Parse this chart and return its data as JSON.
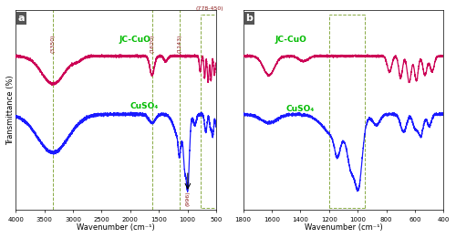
{
  "panel_a": {
    "xmin": 500,
    "xmax": 4000,
    "xlabel": "Wavenumber (cm⁻¹)",
    "ylabel": "Transmittance (%)",
    "label": "a",
    "xticks": [
      4000,
      3500,
      3000,
      2500,
      2000,
      1500,
      1000,
      500
    ]
  },
  "panel_b": {
    "xmin": 400,
    "xmax": 1800,
    "xlabel": "Wavenumber (cm⁻¹)",
    "label": "b",
    "xticks": [
      1800,
      1600,
      1400,
      1200,
      1000,
      800,
      600,
      400
    ]
  },
  "bg_color": "#ffffff",
  "line_color_jccuo": "#cc0055",
  "line_color_cuso4": "#1a1aff",
  "dashed_color": "#88aa44",
  "label_bg": "#555555",
  "annot_color": "#8B1a1a"
}
